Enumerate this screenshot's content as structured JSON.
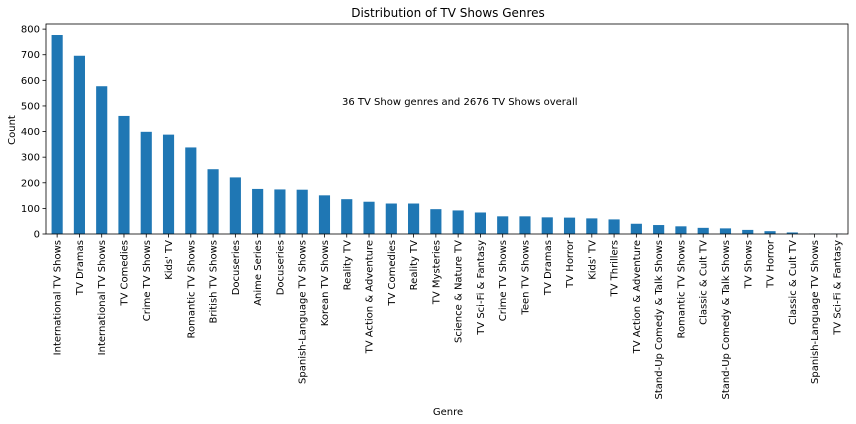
{
  "chart_data": {
    "type": "bar",
    "title": "Distribution of TV Shows Genres",
    "xlabel": "Genre",
    "ylabel": "Count",
    "ylim": [
      0,
      820
    ],
    "yticks": [
      0,
      100,
      200,
      300,
      400,
      500,
      600,
      700,
      800
    ],
    "grid": false,
    "legend": "none",
    "bar_color": "#1f77b4",
    "annotation": "36 TV Show genres and 2676 TV Shows overall",
    "categories": [
      "International TV Shows",
      "TV Dramas",
      "International TV Shows",
      "TV Comedies",
      "Crime TV Shows",
      "Kids' TV",
      "Romantic TV Shows",
      "British TV Shows",
      "Docuseries",
      "Anime Series",
      "Docuseries",
      "Spanish-Language TV Shows",
      "Korean TV Shows",
      "Reality TV",
      "TV Action & Adventure",
      "TV Comedies",
      "Reality TV",
      "TV Mysteries",
      "Science & Nature TV",
      "TV Sci-Fi & Fantasy",
      "Crime TV Shows",
      "Teen TV Shows",
      "TV Dramas",
      "TV Horror",
      "Kids' TV",
      "TV Thrillers",
      "TV Action & Adventure",
      "Stand-Up Comedy & Talk Shows",
      "Romantic TV Shows",
      "Classic & Cult TV",
      "Stand-Up Comedy & Talk Shows",
      "TV Shows",
      "TV Horror",
      "Classic & Cult TV",
      "Spanish-Language TV Shows",
      "TV Sci-Fi & Fantasy"
    ],
    "values": [
      777,
      696,
      577,
      461,
      399,
      388,
      338,
      253,
      221,
      176,
      174,
      173,
      151,
      136,
      126,
      119,
      119,
      97,
      92,
      84,
      69,
      69,
      65,
      64,
      61,
      57,
      40,
      35,
      30,
      24,
      22,
      16,
      11,
      6,
      1,
      1
    ]
  }
}
